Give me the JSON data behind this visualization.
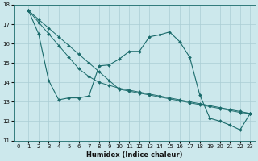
{
  "xlabel": "Humidex (Indice chaleur)",
  "background_color": "#cce8ec",
  "grid_color": "#aacdd4",
  "line_color": "#1a6b6b",
  "xlim": [
    -0.5,
    23.5
  ],
  "ylim": [
    11,
    18
  ],
  "yticks": [
    11,
    12,
    13,
    14,
    15,
    16,
    17,
    18
  ],
  "xticks": [
    0,
    1,
    2,
    3,
    4,
    5,
    6,
    7,
    8,
    9,
    10,
    11,
    12,
    13,
    14,
    15,
    16,
    17,
    18,
    19,
    20,
    21,
    22,
    23
  ],
  "line1_x": [
    1,
    2,
    3,
    4,
    5,
    6,
    7,
    8,
    9,
    10,
    11,
    12,
    13,
    14,
    15,
    16,
    17,
    18,
    19,
    20,
    21,
    22,
    23
  ],
  "line1_y": [
    17.7,
    16.5,
    14.1,
    13.1,
    13.2,
    13.2,
    13.3,
    14.85,
    14.9,
    15.2,
    15.6,
    15.6,
    16.35,
    16.45,
    16.6,
    16.1,
    15.3,
    13.35,
    12.15,
    12.0,
    11.8,
    11.55,
    12.4
  ],
  "line2_x": [
    1,
    2,
    3,
    4,
    5,
    6,
    7,
    8,
    9,
    10,
    11,
    12,
    13,
    14,
    15,
    16,
    17,
    18,
    19,
    20,
    21,
    22,
    23
  ],
  "line2_y": [
    17.7,
    17.25,
    16.8,
    16.35,
    15.9,
    15.45,
    15.0,
    14.55,
    14.1,
    13.65,
    13.55,
    13.45,
    13.35,
    13.25,
    13.15,
    13.05,
    12.95,
    12.85,
    12.75,
    12.65,
    12.55,
    12.45,
    12.4
  ],
  "line3_x": [
    1,
    2,
    3,
    4,
    5,
    6,
    7,
    8,
    9,
    10,
    11,
    12,
    13,
    14,
    15,
    16,
    17,
    18,
    19,
    20,
    21,
    22,
    23
  ],
  "line3_y": [
    17.7,
    17.1,
    16.5,
    15.9,
    15.3,
    14.7,
    14.3,
    14.0,
    13.85,
    13.7,
    13.6,
    13.5,
    13.4,
    13.3,
    13.2,
    13.1,
    13.0,
    12.9,
    12.8,
    12.7,
    12.6,
    12.5,
    12.4
  ]
}
